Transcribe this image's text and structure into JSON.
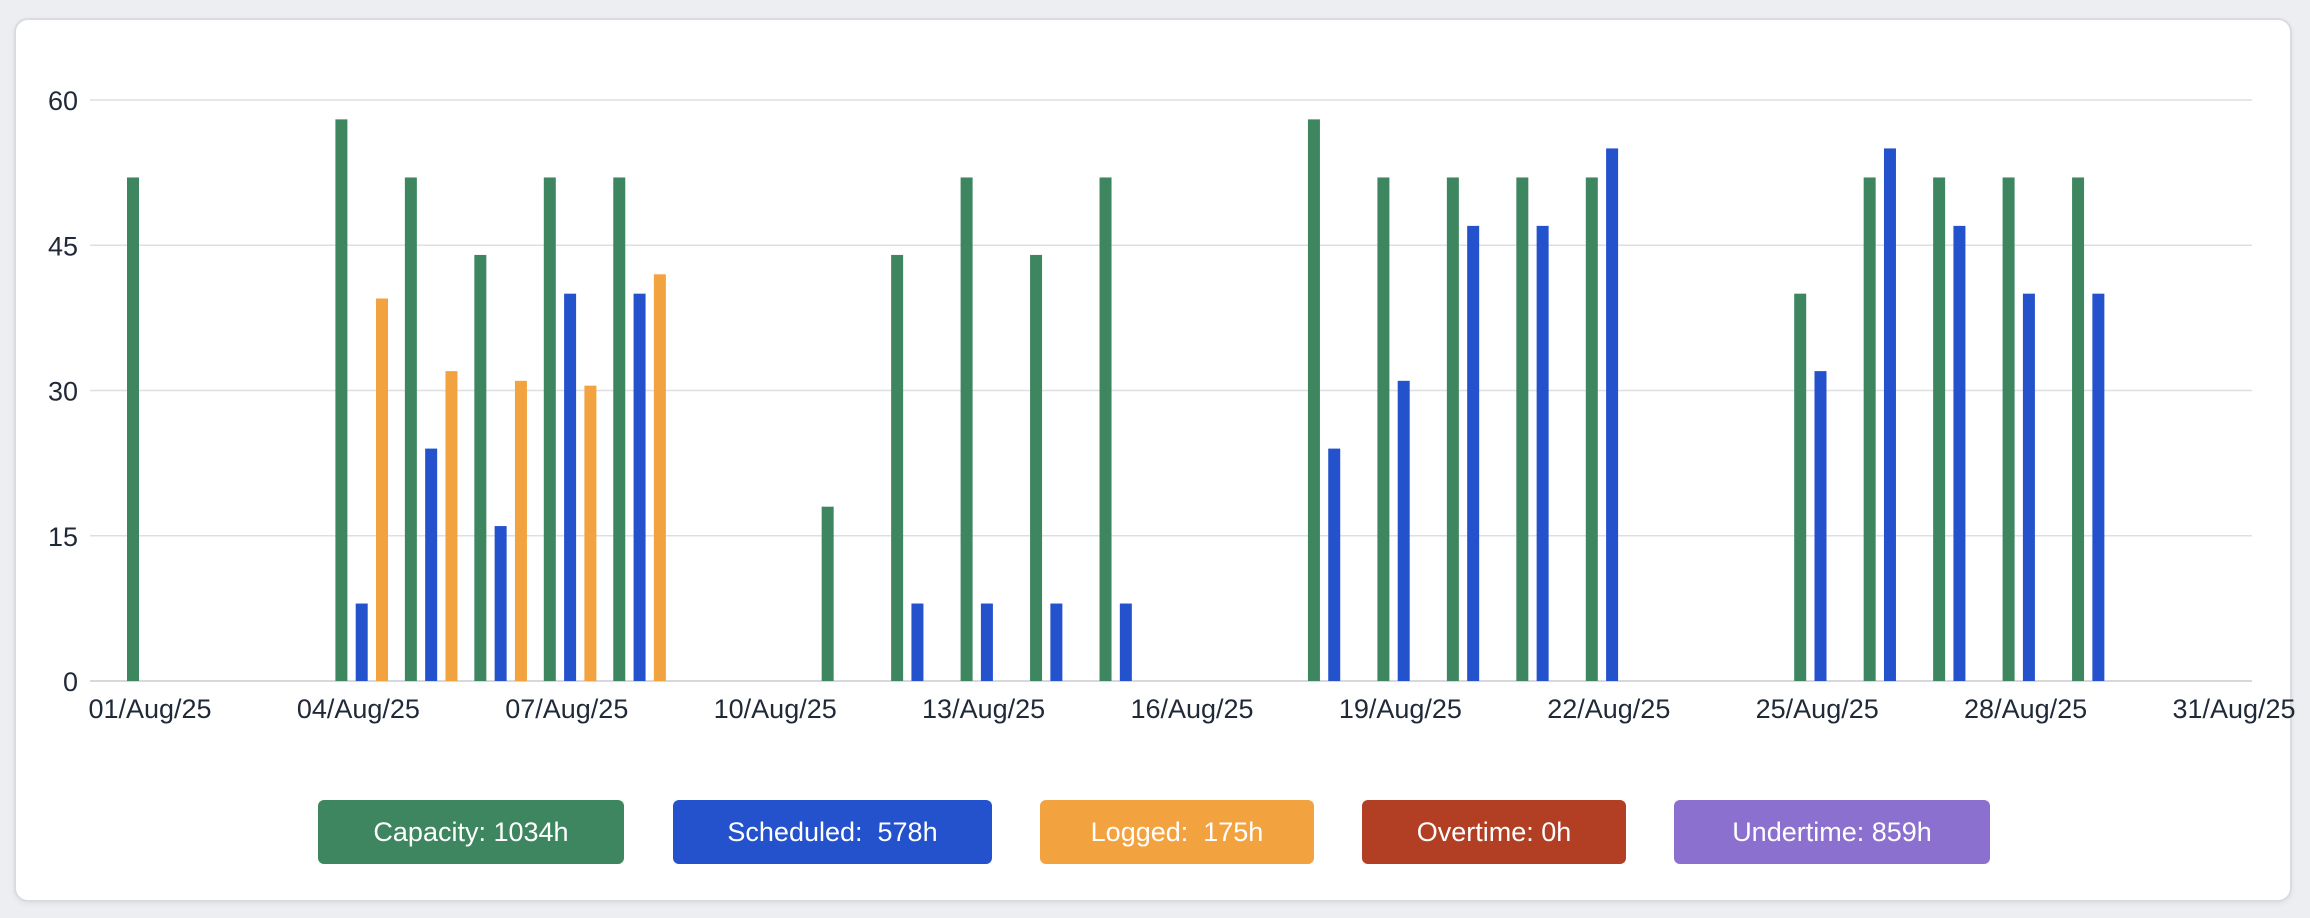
{
  "chart_data": {
    "type": "bar",
    "title": "",
    "xlabel": "",
    "ylabel": "",
    "ylim": [
      0,
      60
    ],
    "yticks": [
      0,
      15,
      30,
      45,
      60
    ],
    "grid": true,
    "legend_position": "bottom",
    "x_range": [
      "01/Aug/25",
      "31/Aug/25"
    ],
    "x_tick_labels": [
      "01/Aug/25",
      "04/Aug/25",
      "07/Aug/25",
      "10/Aug/25",
      "13/Aug/25",
      "16/Aug/25",
      "19/Aug/25",
      "22/Aug/25",
      "25/Aug/25",
      "28/Aug/25",
      "31/Aug/25"
    ],
    "categories": [
      "01/Aug/25",
      "02/Aug/25",
      "03/Aug/25",
      "04/Aug/25",
      "05/Aug/25",
      "06/Aug/25",
      "07/Aug/25",
      "08/Aug/25",
      "09/Aug/25",
      "10/Aug/25",
      "11/Aug/25",
      "12/Aug/25",
      "13/Aug/25",
      "14/Aug/25",
      "15/Aug/25",
      "16/Aug/25",
      "17/Aug/25",
      "18/Aug/25",
      "19/Aug/25",
      "20/Aug/25",
      "21/Aug/25",
      "22/Aug/25",
      "23/Aug/25",
      "24/Aug/25",
      "25/Aug/25",
      "26/Aug/25",
      "27/Aug/25",
      "28/Aug/25",
      "29/Aug/25",
      "30/Aug/25"
    ],
    "series": [
      {
        "name": "Capacity",
        "color": "#3e8660",
        "values": [
          52,
          0,
          0,
          58,
          52,
          44,
          52,
          52,
          0,
          0,
          18,
          44,
          52,
          44,
          52,
          0,
          0,
          58,
          52,
          52,
          52,
          52,
          0,
          0,
          40,
          52,
          52,
          52,
          52,
          0
        ]
      },
      {
        "name": "Scheduled",
        "color": "#2352cc",
        "values": [
          0,
          0,
          0,
          8,
          24,
          16,
          40,
          40,
          0,
          0,
          0,
          8,
          8,
          8,
          8,
          0,
          0,
          24,
          31,
          47,
          47,
          55,
          0,
          0,
          32,
          55,
          47,
          40,
          40,
          0
        ]
      },
      {
        "name": "Logged",
        "color": "#f3a240",
        "values": [
          0,
          0,
          0,
          39.5,
          32,
          31,
          30.5,
          42,
          0,
          0,
          0,
          0,
          0,
          0,
          0,
          0,
          0,
          0,
          0,
          0,
          0,
          0,
          0,
          0,
          0,
          0,
          0,
          0,
          0,
          0
        ]
      }
    ]
  },
  "legend": [
    {
      "label": "Capacity: 1034h",
      "color": "#3e8660"
    },
    {
      "label": "Scheduled:  578h",
      "color": "#2352cc"
    },
    {
      "label": "Logged:  175h",
      "color": "#f3a240"
    },
    {
      "label": "Overtime: 0h",
      "color": "#b23e24"
    },
    {
      "label": "Undertime: 859h",
      "color": "#8b70d0"
    }
  ]
}
